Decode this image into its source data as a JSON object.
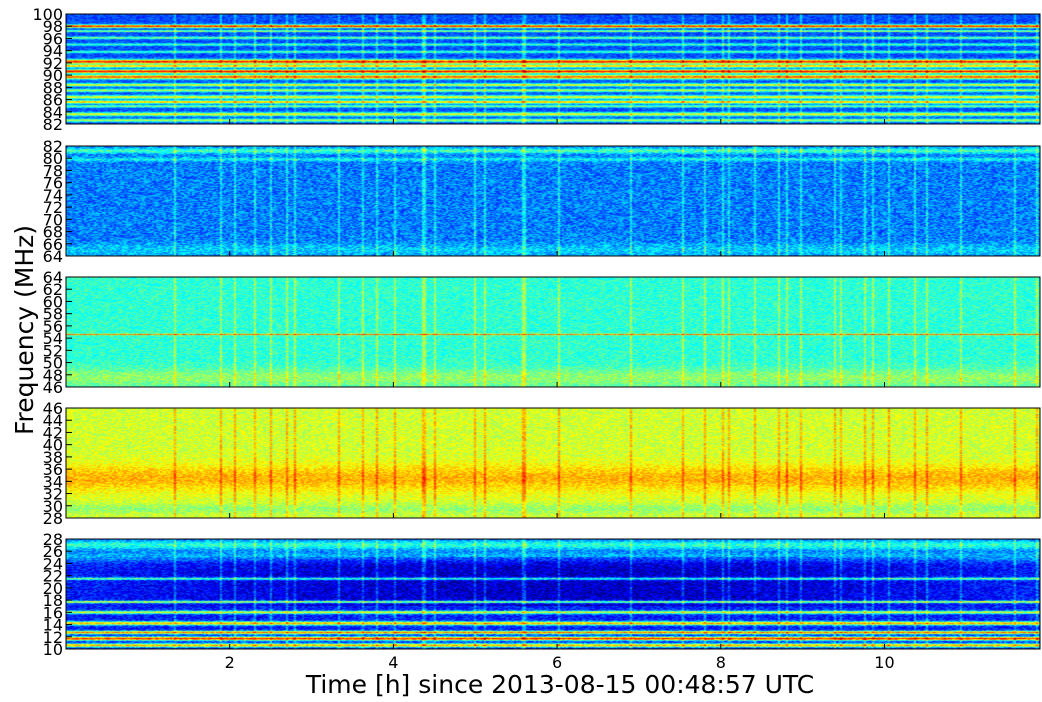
{
  "chart_data": {
    "type": "heatmap",
    "colormap": "jet",
    "ylabel": "Frequency (MHz)",
    "xlabel": "Time [h] since 2013-08-15 00:48:57 UTC",
    "xlim": [
      0,
      11.9
    ],
    "xticks": [
      2,
      4,
      6,
      8,
      10
    ],
    "panels": [
      {
        "ylim": [
          82,
          100
        ],
        "yticks": [
          82,
          84,
          86,
          88,
          90,
          92,
          94,
          96,
          98,
          100
        ],
        "base_level": 0.2,
        "noise": 0.06,
        "bands": [
          {
            "f": 98.0,
            "w": 0.25,
            "level": 0.85
          },
          {
            "f": 97.2,
            "w": 0.15,
            "level": 0.55
          },
          {
            "f": 96.1,
            "w": 0.2,
            "level": 0.5
          },
          {
            "f": 95.0,
            "w": 0.2,
            "level": 0.45
          },
          {
            "f": 93.8,
            "w": 0.2,
            "level": 0.45
          },
          {
            "f": 92.2,
            "w": 0.35,
            "level": 0.85
          },
          {
            "f": 91.5,
            "w": 0.25,
            "level": 0.7
          },
          {
            "f": 90.6,
            "w": 0.3,
            "level": 0.88
          },
          {
            "f": 89.7,
            "w": 0.35,
            "level": 0.78
          },
          {
            "f": 88.4,
            "w": 0.25,
            "level": 0.6
          },
          {
            "f": 87.5,
            "w": 0.25,
            "level": 0.55
          },
          {
            "f": 86.4,
            "w": 0.3,
            "level": 0.6
          },
          {
            "f": 85.6,
            "w": 0.25,
            "level": 0.7
          },
          {
            "f": 84.9,
            "w": 0.2,
            "level": 0.5
          },
          {
            "f": 83.6,
            "w": 0.3,
            "level": 0.6
          },
          {
            "f": 82.6,
            "w": 0.25,
            "level": 0.55
          }
        ]
      },
      {
        "ylim": [
          64,
          82
        ],
        "yticks": [
          64,
          66,
          68,
          70,
          72,
          74,
          76,
          78,
          80,
          82
        ],
        "base_level": 0.25,
        "noise": 0.09,
        "bands": [
          {
            "f": 81.2,
            "w": 0.4,
            "level": 0.45
          },
          {
            "f": 79.8,
            "w": 0.3,
            "level": 0.38
          },
          {
            "f": 65.0,
            "w": 1.0,
            "level": 0.33
          }
        ]
      },
      {
        "ylim": [
          46,
          64
        ],
        "yticks": [
          46,
          48,
          50,
          52,
          54,
          56,
          58,
          60,
          62,
          64
        ],
        "base_level": 0.42,
        "noise": 0.06,
        "bands": [
          {
            "f": 47.5,
            "w": 1.5,
            "level": 0.52
          },
          {
            "f": 54.6,
            "w": 0.12,
            "level": 0.75
          }
        ]
      },
      {
        "ylim": [
          28,
          46
        ],
        "yticks": [
          28,
          30,
          32,
          34,
          36,
          38,
          40,
          42,
          44,
          46
        ],
        "base_level": 0.58,
        "noise": 0.06,
        "bands": [
          {
            "f": 34.5,
            "w": 2.2,
            "level": 0.7
          },
          {
            "f": 29.5,
            "w": 0.8,
            "level": 0.52
          }
        ]
      },
      {
        "ylim": [
          10,
          28
        ],
        "yticks": [
          10,
          12,
          14,
          16,
          18,
          20,
          22,
          24,
          26,
          28
        ],
        "base_level": 0.15,
        "noise": 0.08,
        "bands": [
          {
            "f": 27.0,
            "w": 0.9,
            "level": 0.42
          },
          {
            "f": 25.2,
            "w": 1.0,
            "level": 0.3
          },
          {
            "f": 21.5,
            "w": 0.2,
            "level": 0.5
          },
          {
            "f": 17.7,
            "w": 0.2,
            "level": 0.6
          },
          {
            "f": 16.0,
            "w": 0.25,
            "level": 0.6
          },
          {
            "f": 14.2,
            "w": 0.3,
            "level": 0.7
          },
          {
            "f": 12.7,
            "w": 0.25,
            "level": 0.75
          },
          {
            "f": 11.7,
            "w": 0.3,
            "level": 0.85
          },
          {
            "f": 10.6,
            "w": 0.3,
            "level": 0.7
          }
        ]
      }
    ]
  }
}
